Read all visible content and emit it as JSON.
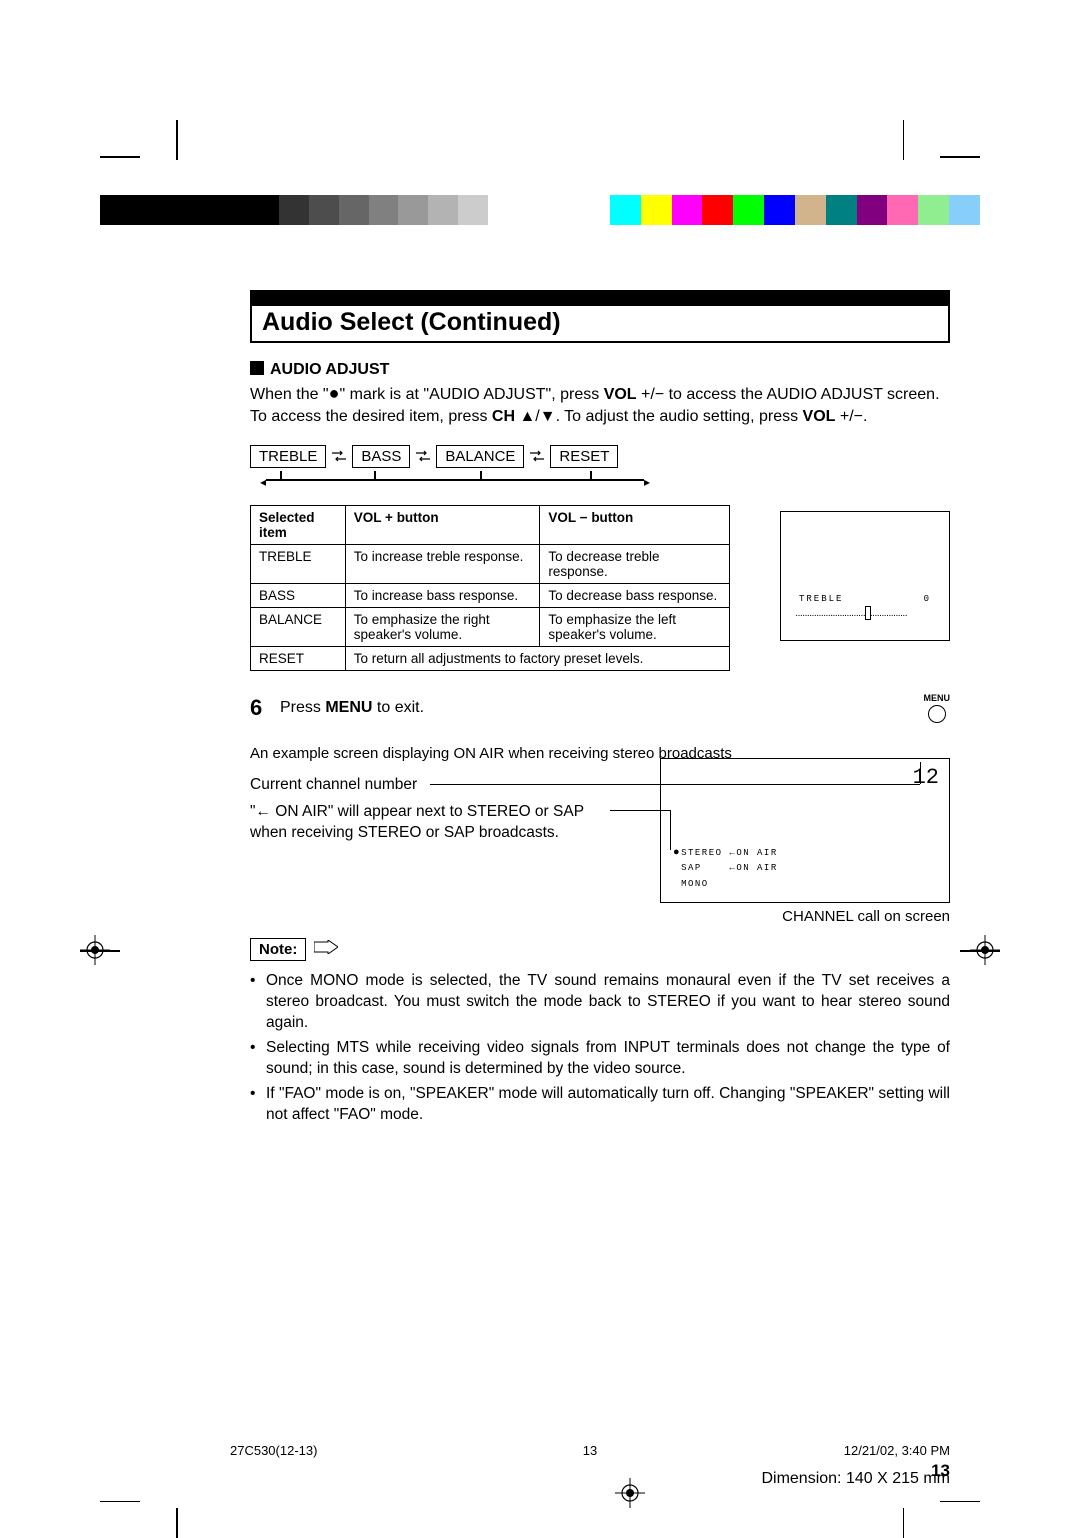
{
  "colorbars": {
    "left": [
      "#000000",
      "#000000",
      "#000000",
      "#000000",
      "#000000",
      "#000000",
      "#333333",
      "#4d4d4d",
      "#666666",
      "#808080",
      "#999999",
      "#b3b3b3",
      "#cccccc",
      "#ffffff"
    ],
    "right": [
      "#00ffff",
      "#ffff00",
      "#ff00ff",
      "#ff0000",
      "#00ff00",
      "#0000ff",
      "#d2b48c",
      "#008080",
      "#800080",
      "#ff69b4",
      "#90ee90",
      "#87cefa"
    ]
  },
  "title": "Audio Select (Continued)",
  "audio_adjust": {
    "heading": "AUDIO ADJUST",
    "p1_a": "When the \"",
    "p1_b": "\" mark is at \"AUDIO ADJUST\", press ",
    "p1_c": "VOL",
    "p1_d": " +/− to access the AUDIO ADJUST screen. To access the desired item, press ",
    "p1_e": "CH",
    "p1_f": " ▲/▼. To adjust the audio setting, press ",
    "p1_g": "VOL",
    "p1_h": " +/−."
  },
  "flow": [
    "TREBLE",
    "BASS",
    "BALANCE",
    "RESET"
  ],
  "table": {
    "headers": [
      "Selected item",
      "VOL + button",
      "VOL − button"
    ],
    "rows": [
      [
        "TREBLE",
        "To increase treble response.",
        "To decrease treble response."
      ],
      [
        "BASS",
        "To increase bass response.",
        "To decrease bass response."
      ],
      [
        "BALANCE",
        "To emphasize the right speaker's volume.",
        "To emphasize the left speaker's volume."
      ],
      [
        "RESET",
        "To return all adjustments to factory preset levels.",
        ""
      ]
    ]
  },
  "osd1": {
    "label": "TREBLE",
    "value": "0"
  },
  "step6": {
    "num": "6",
    "text_a": "Press ",
    "text_b": "MENU",
    "text_c": " to exit.",
    "btn": "MENU"
  },
  "example": "An example screen displaying ON AIR when receiving stereo broadcasts",
  "callouts": {
    "c1": "Current channel number",
    "c2": "\"← ON AIR\" will appear next to STEREO or SAP when receiving STEREO or SAP broadcasts."
  },
  "osd2": {
    "channel": "12",
    "rows": [
      {
        "dot": true,
        "label": "STEREO",
        "onair": "←ON AIR"
      },
      {
        "dot": false,
        "label": "SAP",
        "onair": "←ON AIR"
      },
      {
        "dot": false,
        "label": "MONO",
        "onair": ""
      }
    ],
    "caption": "CHANNEL call on screen"
  },
  "note_label": "Note:",
  "notes": [
    "Once MONO mode is selected, the TV sound remains monaural even if the TV set receives a stereo broadcast. You must switch the mode back to STEREO if you want to hear stereo sound again.",
    "Selecting MTS while receiving video signals from INPUT terminals does not change the type of sound; in this case, sound is determined by the video source.",
    "If \"FAO\" mode is on, \"SPEAKER\" mode will automatically turn off. Changing \"SPEAKER\" setting will not affect \"FAO\" mode."
  ],
  "page_number": "13",
  "footer": {
    "doc": "27C530(12-13)",
    "page": "13",
    "date": "12/21/02, 3:40 PM"
  },
  "dimension": "Dimension: 140  X 215 mm"
}
